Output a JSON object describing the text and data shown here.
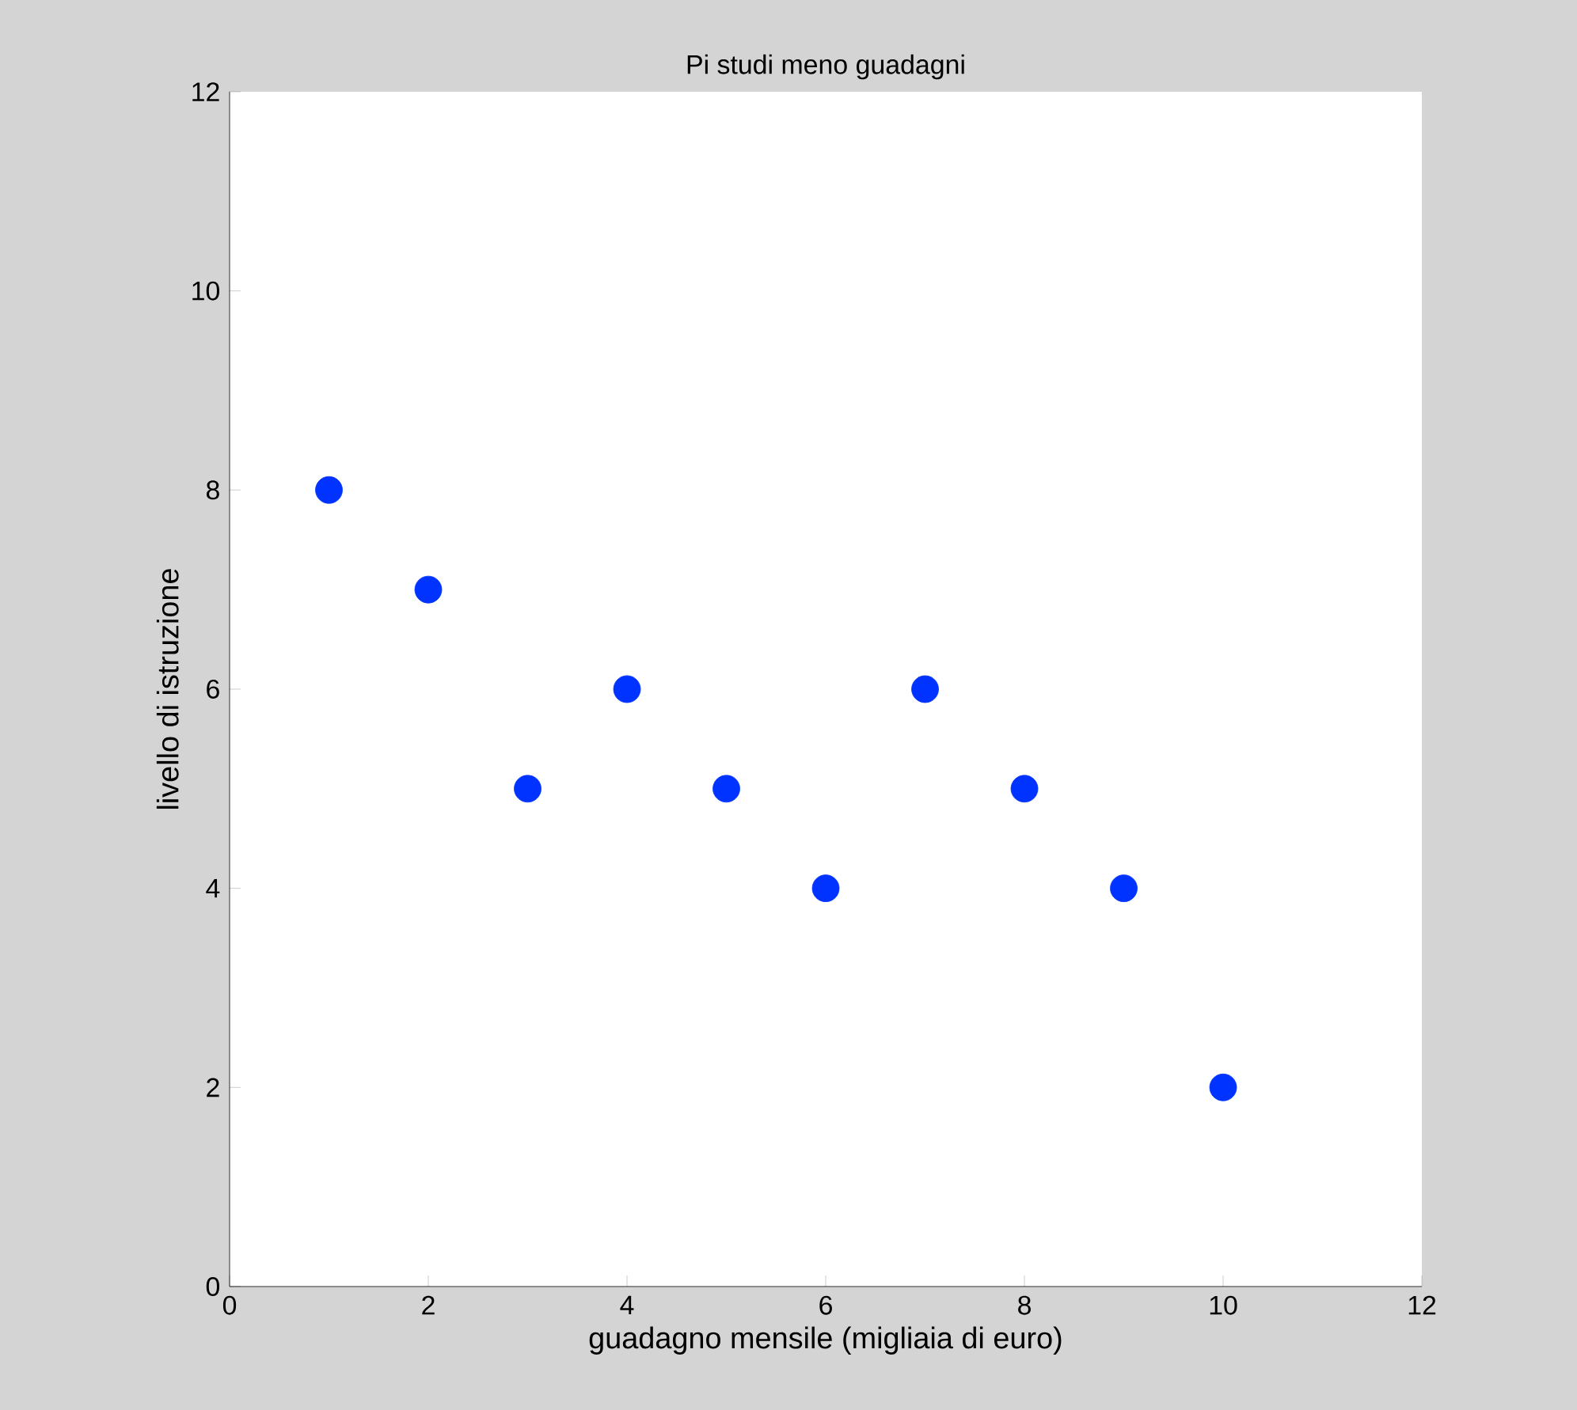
{
  "chart_data": {
    "type": "scatter",
    "title": "Pi studi meno guadagni",
    "xlabel": "guadagno mensile (migliaia di euro)",
    "ylabel": "livello di istruzione",
    "x": [
      1,
      2,
      3,
      4,
      5,
      6,
      7,
      8,
      9,
      10
    ],
    "values": [
      8,
      7,
      5,
      6,
      5,
      4,
      6,
      5,
      4,
      2
    ],
    "color": "#0033ff",
    "marker": "circle",
    "xlim": [
      0,
      12
    ],
    "ylim": [
      0,
      12
    ],
    "xticks": [
      0,
      2,
      4,
      6,
      8,
      10,
      12
    ],
    "yticks": [
      0,
      2,
      4,
      6,
      8,
      10,
      12
    ]
  }
}
